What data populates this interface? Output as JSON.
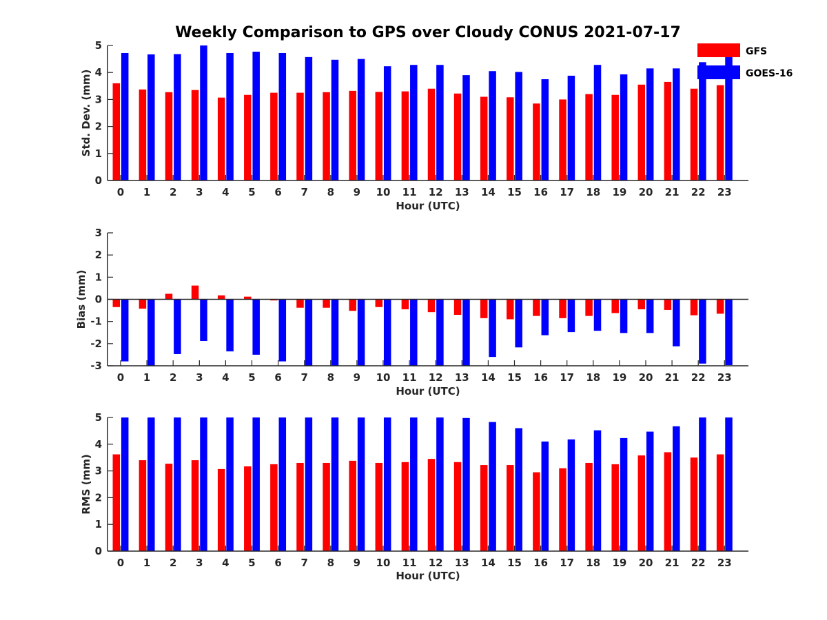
{
  "figure_title": "Weekly Comparison to GPS over Cloudy CONUS 2021-07-17",
  "legend": {
    "placement": "top-right"
  },
  "colors": {
    "GFS": "#ff0000",
    "GOES-16": "#0000ff",
    "axis": "#262626"
  },
  "chart_data": [
    {
      "type": "bar",
      "title": "",
      "xlabel": "Hour (UTC)",
      "ylabel": "Std. Dev. (mm)",
      "ylim": [
        0,
        5
      ],
      "yticks": [
        0,
        1,
        2,
        3,
        4,
        5
      ],
      "categories": [
        "0",
        "1",
        "2",
        "3",
        "4",
        "5",
        "6",
        "7",
        "8",
        "9",
        "10",
        "11",
        "12",
        "13",
        "14",
        "15",
        "16",
        "17",
        "18",
        "19",
        "20",
        "21",
        "22",
        "23"
      ],
      "series": [
        {
          "name": "GFS",
          "color": "#ff0000",
          "values": [
            3.6,
            3.37,
            3.27,
            3.35,
            3.07,
            3.17,
            3.25,
            3.25,
            3.27,
            3.32,
            3.28,
            3.3,
            3.4,
            3.22,
            3.1,
            3.08,
            2.85,
            3.0,
            3.2,
            3.17,
            3.55,
            3.65,
            3.4,
            3.53
          ]
        },
        {
          "name": "GOES-16",
          "color": "#0000ff",
          "values": [
            4.72,
            4.67,
            4.68,
            5.0,
            4.72,
            4.77,
            4.72,
            4.57,
            4.47,
            4.5,
            4.23,
            4.28,
            4.28,
            3.9,
            4.05,
            4.02,
            3.75,
            3.88,
            4.28,
            3.93,
            4.15,
            4.15,
            4.38,
            4.6
          ]
        }
      ]
    },
    {
      "type": "bar",
      "title": "",
      "xlabel": "Hour (UTC)",
      "ylabel": "Bias (mm)",
      "ylim": [
        -3,
        3
      ],
      "yticks": [
        -3,
        -2,
        -1,
        0,
        1,
        2,
        3
      ],
      "categories": [
        "0",
        "1",
        "2",
        "3",
        "4",
        "5",
        "6",
        "7",
        "8",
        "9",
        "10",
        "11",
        "12",
        "13",
        "14",
        "15",
        "16",
        "17",
        "18",
        "19",
        "20",
        "21",
        "22",
        "23"
      ],
      "series": [
        {
          "name": "GFS",
          "color": "#ff0000",
          "values": [
            -0.35,
            -0.42,
            0.25,
            0.62,
            0.18,
            0.12,
            -0.05,
            -0.38,
            -0.38,
            -0.52,
            -0.35,
            -0.45,
            -0.58,
            -0.7,
            -0.85,
            -0.9,
            -0.75,
            -0.85,
            -0.75,
            -0.62,
            -0.45,
            -0.48,
            -0.72,
            -0.65
          ]
        },
        {
          "name": "GOES-16",
          "color": "#0000ff",
          "values": [
            -2.8,
            -3.0,
            -2.47,
            -1.88,
            -2.35,
            -2.5,
            -2.8,
            -3.0,
            -3.0,
            -3.0,
            -3.0,
            -3.0,
            -3.0,
            -3.0,
            -2.6,
            -2.17,
            -1.62,
            -1.48,
            -1.42,
            -1.52,
            -1.52,
            -2.12,
            -2.9,
            -2.97
          ]
        }
      ]
    },
    {
      "type": "bar",
      "title": "",
      "xlabel": "Hour (UTC)",
      "ylabel": "RMS (mm)",
      "ylim": [
        0,
        5
      ],
      "yticks": [
        0,
        1,
        2,
        3,
        4,
        5
      ],
      "categories": [
        "0",
        "1",
        "2",
        "3",
        "4",
        "5",
        "6",
        "7",
        "8",
        "9",
        "10",
        "11",
        "12",
        "13",
        "14",
        "15",
        "16",
        "17",
        "18",
        "19",
        "20",
        "21",
        "22",
        "23"
      ],
      "series": [
        {
          "name": "GFS",
          "color": "#ff0000",
          "values": [
            3.62,
            3.4,
            3.27,
            3.4,
            3.07,
            3.17,
            3.25,
            3.3,
            3.3,
            3.38,
            3.3,
            3.33,
            3.45,
            3.33,
            3.22,
            3.22,
            2.95,
            3.1,
            3.3,
            3.25,
            3.58,
            3.7,
            3.5,
            3.62
          ]
        },
        {
          "name": "GOES-16",
          "color": "#0000ff",
          "values": [
            5.0,
            5.0,
            5.0,
            5.0,
            5.0,
            5.0,
            5.0,
            5.0,
            5.0,
            5.0,
            5.0,
            5.0,
            5.0,
            4.98,
            4.83,
            4.6,
            4.1,
            4.18,
            4.52,
            4.23,
            4.47,
            4.67,
            5.0,
            5.0
          ]
        }
      ]
    }
  ]
}
